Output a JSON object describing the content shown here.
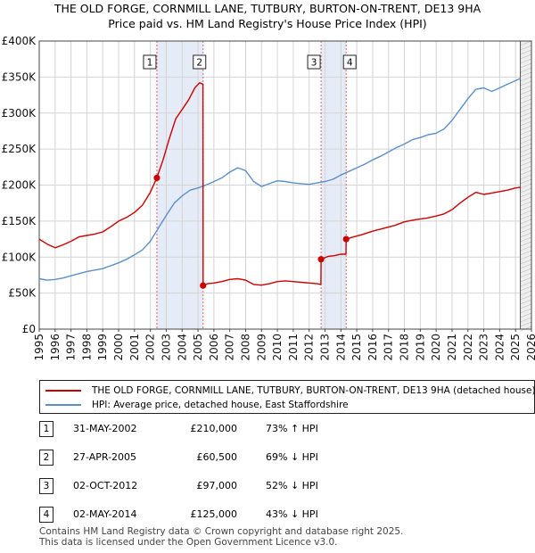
{
  "title": {
    "line1": "THE OLD FORGE, CORNMILL LANE, TUTBURY, BURTON-ON-TRENT, DE13 9HA",
    "line2": "Price paid vs. HM Land Registry's House Price Index (HPI)"
  },
  "chart_data": {
    "type": "line",
    "title": "THE OLD FORGE, CORNMILL LANE, TUTBURY, BURTON-ON-TRENT, DE13 9HA - Price paid vs. HM Land Registry's House Price Index (HPI)",
    "xlabel": "",
    "ylabel": "",
    "xlim": [
      1995,
      2026
    ],
    "ylim": [
      0,
      400000
    ],
    "x_ticks": [
      "1995",
      "1996",
      "1997",
      "1998",
      "1999",
      "2000",
      "2001",
      "2002",
      "2003",
      "2004",
      "2005",
      "2006",
      "2007",
      "2008",
      "2009",
      "2010",
      "2011",
      "2012",
      "2013",
      "2014",
      "2015",
      "2016",
      "2017",
      "2018",
      "2019",
      "2020",
      "2021",
      "2022",
      "2023",
      "2024",
      "2025",
      "2026"
    ],
    "y_ticks": [
      {
        "value": 0,
        "label": "£0"
      },
      {
        "value": 50000,
        "label": "£50K"
      },
      {
        "value": 100000,
        "label": "£100K"
      },
      {
        "value": 150000,
        "label": "£150K"
      },
      {
        "value": 200000,
        "label": "£200K"
      },
      {
        "value": 250000,
        "label": "£250K"
      },
      {
        "value": 300000,
        "label": "£300K"
      },
      {
        "value": 350000,
        "label": "£350K"
      },
      {
        "value": 400000,
        "label": "£400K"
      }
    ],
    "grid": true,
    "projection_start": 2025.3,
    "shaded_periods": [
      {
        "from": 2002.41,
        "to": 2005.32
      },
      {
        "from": 2012.75,
        "to": 2014.33
      }
    ],
    "series": [
      {
        "name": "THE OLD FORGE, CORNMILL LANE, TUTBURY, BURTON-ON-TRENT, DE13 9HA (detached house)",
        "color": "#cc0000",
        "x": [
          1995.0,
          1995.5,
          1996.0,
          1996.5,
          1997.0,
          1997.5,
          1998.0,
          1998.5,
          1999.0,
          1999.5,
          2000.0,
          2000.5,
          2001.0,
          2001.5,
          2002.0,
          2002.41,
          2002.8,
          2003.2,
          2003.6,
          2004.0,
          2004.4,
          2004.8,
          2005.1,
          2005.31,
          2005.32,
          2005.6,
          2006.0,
          2006.5,
          2007.0,
          2007.5,
          2008.0,
          2008.5,
          2009.0,
          2009.5,
          2010.0,
          2010.5,
          2011.0,
          2011.5,
          2012.0,
          2012.5,
          2012.74,
          2012.75,
          2013.2,
          2013.6,
          2014.0,
          2014.32,
          2014.33,
          2014.8,
          2015.3,
          2016.0,
          2016.7,
          2017.4,
          2018.0,
          2018.7,
          2019.4,
          2020.0,
          2020.5,
          2021.0,
          2021.5,
          2022.0,
          2022.5,
          2023.0,
          2023.5,
          2024.0,
          2024.5,
          2025.0,
          2025.3
        ],
        "y": [
          125000,
          118000,
          113000,
          117000,
          122000,
          128000,
          130000,
          132000,
          135000,
          142000,
          150000,
          155000,
          162000,
          172000,
          190000,
          210000,
          235000,
          265000,
          292000,
          305000,
          318000,
          335000,
          342000,
          340000,
          60500,
          63000,
          64000,
          66000,
          69000,
          70000,
          68000,
          62000,
          61000,
          63000,
          66000,
          67000,
          66000,
          65000,
          64000,
          63000,
          62000,
          97000,
          101000,
          102000,
          104000,
          104000,
          125000,
          128000,
          131000,
          136000,
          140000,
          144000,
          149000,
          152000,
          154000,
          157000,
          160000,
          166000,
          175000,
          183000,
          190000,
          187000,
          189000,
          191000,
          193000,
          196000,
          197000
        ]
      },
      {
        "name": "HPI: Average price, detached house, East Staffordshire",
        "color": "#5b8fc9",
        "x": [
          1995.0,
          1995.5,
          1996.0,
          1996.5,
          1997.0,
          1997.5,
          1998.0,
          1998.5,
          1999.0,
          1999.5,
          2000.0,
          2000.5,
          2001.0,
          2001.5,
          2002.0,
          2002.5,
          2003.0,
          2003.5,
          2004.0,
          2004.5,
          2005.0,
          2005.5,
          2006.0,
          2006.5,
          2007.0,
          2007.5,
          2008.0,
          2008.5,
          2009.0,
          2009.5,
          2010.0,
          2010.5,
          2011.0,
          2011.5,
          2012.0,
          2012.5,
          2013.0,
          2013.5,
          2014.0,
          2014.5,
          2015.0,
          2015.5,
          2016.0,
          2016.5,
          2017.0,
          2017.5,
          2018.0,
          2018.5,
          2019.0,
          2019.5,
          2020.0,
          2020.5,
          2021.0,
          2021.5,
          2022.0,
          2022.5,
          2023.0,
          2023.5,
          2024.0,
          2024.5,
          2025.0,
          2025.3
        ],
        "y": [
          70000,
          68000,
          69000,
          71000,
          74000,
          77000,
          80000,
          82000,
          84000,
          88000,
          92000,
          97000,
          103000,
          110000,
          122000,
          140000,
          158000,
          175000,
          185000,
          193000,
          196000,
          200000,
          205000,
          210000,
          218000,
          224000,
          220000,
          205000,
          198000,
          202000,
          206000,
          205000,
          203000,
          202000,
          201000,
          203000,
          205000,
          208000,
          214000,
          219000,
          224000,
          229000,
          235000,
          240000,
          246000,
          252000,
          257000,
          263000,
          266000,
          270000,
          272000,
          278000,
          290000,
          305000,
          320000,
          333000,
          335000,
          330000,
          335000,
          340000,
          345000,
          348000
        ]
      }
    ],
    "markers": [
      {
        "label": "1",
        "x": 2002.41,
        "y": 210000
      },
      {
        "label": "2",
        "x": 2005.32,
        "y": 60500
      },
      {
        "label": "3",
        "x": 2012.75,
        "y": 97000
      },
      {
        "label": "4",
        "x": 2014.33,
        "y": 125000
      }
    ]
  },
  "legend": {
    "property": "THE OLD FORGE, CORNMILL LANE, TUTBURY, BURTON-ON-TRENT, DE13 9HA (detached house)",
    "hpi": "HPI: Average price, detached house, East Staffordshire"
  },
  "sales": [
    {
      "num": "1",
      "date": "31-MAY-2002",
      "price": "£210,000",
      "hpi": "73% ↑ HPI"
    },
    {
      "num": "2",
      "date": "27-APR-2005",
      "price": "£60,500",
      "hpi": "69% ↓ HPI"
    },
    {
      "num": "3",
      "date": "02-OCT-2012",
      "price": "£97,000",
      "hpi": "52% ↓ HPI"
    },
    {
      "num": "4",
      "date": "02-MAY-2014",
      "price": "£125,000",
      "hpi": "43% ↓ HPI"
    }
  ],
  "footer": {
    "line1": "Contains HM Land Registry data © Crown copyright and database right 2025.",
    "line2": "This data is licensed under the Open Government Licence v3.0."
  }
}
